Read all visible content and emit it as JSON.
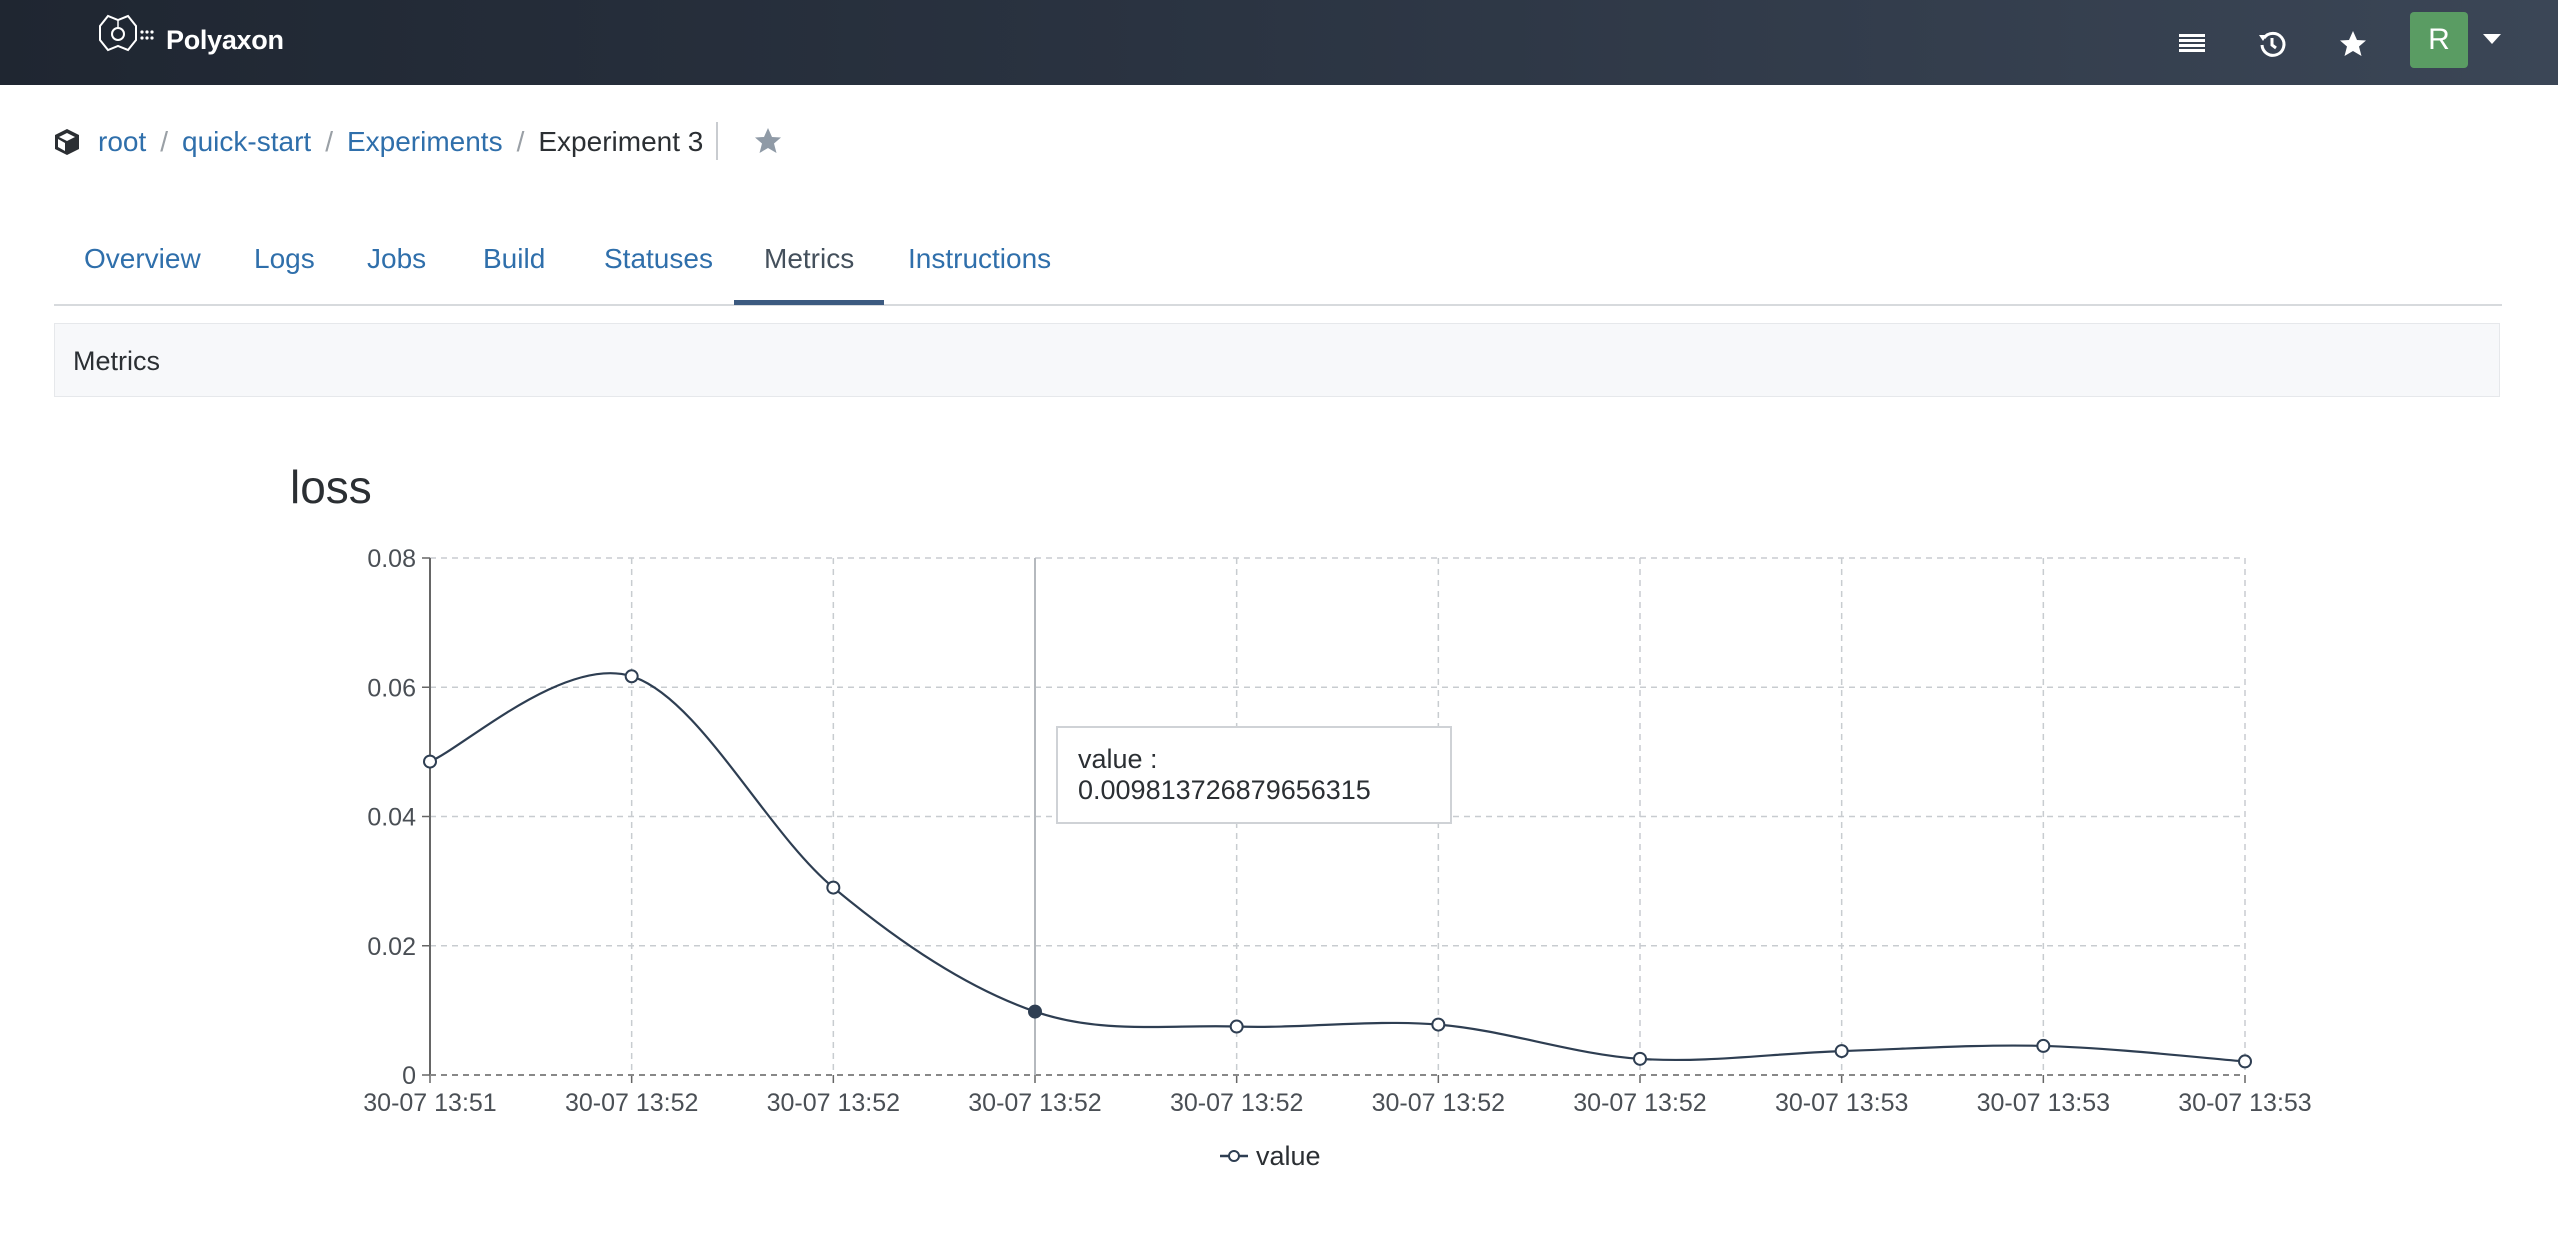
{
  "app": {
    "brand": "Polyaxon",
    "user_initial": "R"
  },
  "header_icons": [
    "list-icon",
    "history-icon",
    "star-icon"
  ],
  "breadcrumb": {
    "items": [
      "root",
      "quick-start",
      "Experiments"
    ],
    "current": "Experiment 3"
  },
  "tabs": [
    {
      "label": "Overview",
      "active": false
    },
    {
      "label": "Logs",
      "active": false
    },
    {
      "label": "Jobs",
      "active": false
    },
    {
      "label": "Build",
      "active": false
    },
    {
      "label": "Statuses",
      "active": false
    },
    {
      "label": "Metrics",
      "active": true
    },
    {
      "label": "Instructions",
      "active": false
    }
  ],
  "panel": {
    "title": "Metrics"
  },
  "colors": {
    "topbar": "#2a3341",
    "link": "#2f6fab",
    "avatar": "#5a9c63",
    "line": "#2e3e52",
    "active_tab": "#3c5a80"
  },
  "chart_data": {
    "type": "line",
    "title": "loss",
    "xlabel": "",
    "ylabel": "",
    "ylim": [
      0,
      0.08
    ],
    "yticks": [
      "0",
      "0.02",
      "0.04",
      "0.06",
      "0.08"
    ],
    "categories": [
      "30-07 13:51",
      "30-07 13:52",
      "30-07 13:52",
      "30-07 13:52",
      "30-07 13:52",
      "30-07 13:52",
      "30-07 13:52",
      "30-07 13:53",
      "30-07 13:53",
      "30-07 13:53"
    ],
    "series": [
      {
        "name": "value",
        "values": [
          0.0485,
          0.0617,
          0.029,
          0.009813726879656315,
          0.0075,
          0.0078,
          0.0025,
          0.0037,
          0.0045,
          0.0021
        ]
      }
    ],
    "grid": true,
    "legend": "bottom-center",
    "tooltip": {
      "label": "value : 0.009813726879656315",
      "index": 3
    }
  }
}
